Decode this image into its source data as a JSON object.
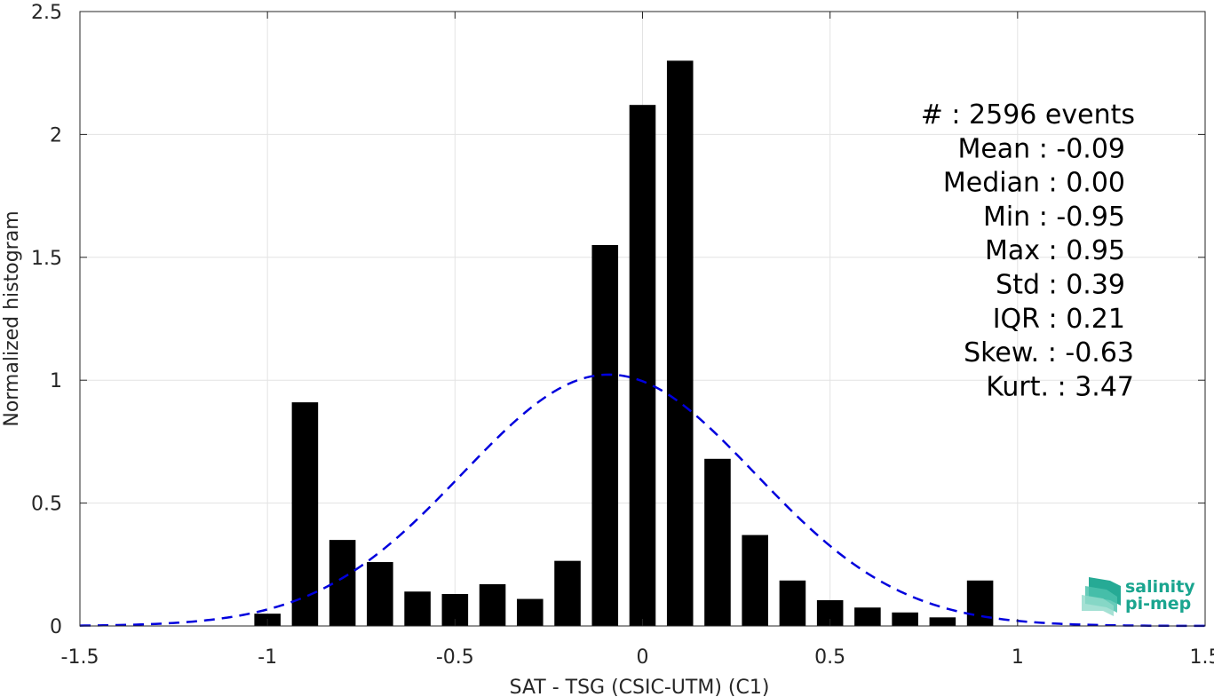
{
  "chart_data": {
    "type": "bar",
    "xlabel": "SAT - TSG (CSIC-UTM) (C1)",
    "ylabel": "Normalized histogram",
    "xlim": [
      -1.5,
      1.5
    ],
    "ylim": [
      0,
      2.5
    ],
    "xticks": [
      -1.5,
      -1,
      -0.5,
      0,
      0.5,
      1,
      1.5
    ],
    "xtick_labels": [
      "-1.5",
      "-1",
      "-0.5",
      "0",
      "0.5",
      "1",
      "1.5"
    ],
    "yticks": [
      0,
      0.5,
      1,
      1.5,
      2,
      2.5
    ],
    "ytick_labels": [
      "0",
      "0.5",
      "1",
      "1.5",
      "2",
      "2.5"
    ],
    "grid": true,
    "bar_color": "#000000",
    "bars": {
      "centers": [
        -1.0,
        -0.9,
        -0.8,
        -0.7,
        -0.6,
        -0.5,
        -0.4,
        -0.3,
        -0.2,
        -0.1,
        0.0,
        0.1,
        0.2,
        0.3,
        0.4,
        0.5,
        0.6,
        0.7,
        0.8,
        0.9
      ],
      "values": [
        0.05,
        0.91,
        0.35,
        0.26,
        0.14,
        0.13,
        0.17,
        0.11,
        0.265,
        1.55,
        2.12,
        2.3,
        0.68,
        0.37,
        0.185,
        0.105,
        0.075,
        0.055,
        0.035,
        0.185
      ]
    },
    "fit_curve": {
      "style": "dashed",
      "color": "#0000dd",
      "mean": -0.09,
      "std": 0.39,
      "x_range": [
        -1.5,
        1.5
      ]
    },
    "stats": [
      "#  : 2596 events",
      "Mean : -0.09",
      "Median : 0.00",
      "Min : -0.95",
      "Max : 0.95",
      "Std : 0.39",
      "IQR : 0.21",
      "Skew. : -0.63",
      "Kurt. : 3.47"
    ]
  },
  "logo": {
    "line1": "salinity",
    "line2": "pi-mep",
    "color": "#1aa58f"
  }
}
